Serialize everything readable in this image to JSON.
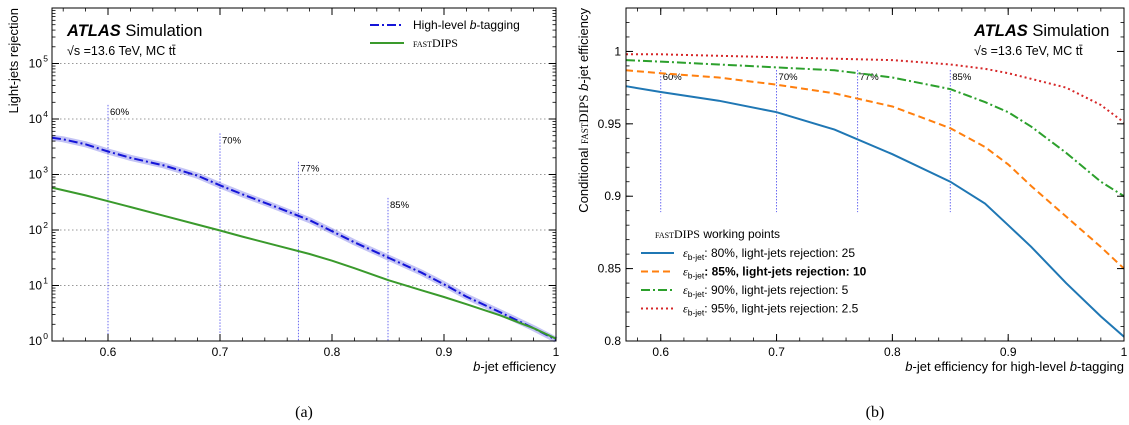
{
  "chart_data": [
    {
      "type": "line",
      "panel_label": "(a)",
      "xlabel": "b-jet efficiency",
      "ylabel": "Light-jets rejection",
      "xlim": [
        0.55,
        1.0
      ],
      "ylim": [
        1,
        1000000
      ],
      "yscale": "log",
      "xticks": [
        0.6,
        0.7,
        0.8,
        0.9,
        1.0
      ],
      "xtick_labels": [
        "0.6",
        "0.7",
        "0.8",
        "0.9",
        "1"
      ],
      "yticks": [
        1,
        10,
        100,
        1000,
        10000,
        100000
      ],
      "ytick_labels": [
        "10",
        "10",
        "10",
        "10",
        "10",
        "10"
      ],
      "ytick_exponents": [
        "0",
        "1",
        "2",
        "3",
        "4",
        "5"
      ],
      "grid": "horizontal dotted",
      "legend_position": "top-right",
      "experiment": "ATLAS",
      "status": "Simulation",
      "energy_text": "√s =13.6 TeV, MC tt̄",
      "working_points": [
        {
          "x": 0.6,
          "label": "60%",
          "top": 18000
        },
        {
          "x": 0.7,
          "label": "70%",
          "top": 5500
        },
        {
          "x": 0.77,
          "label": "77%",
          "top": 1700
        },
        {
          "x": 0.85,
          "label": "85%",
          "top": 380
        }
      ],
      "series": [
        {
          "name": "High-level b-tagging",
          "color": "#1515d8",
          "style": "dashdot",
          "x": [
            0.55,
            0.56,
            0.58,
            0.6,
            0.62,
            0.65,
            0.68,
            0.7,
            0.72,
            0.75,
            0.78,
            0.8,
            0.82,
            0.85,
            0.88,
            0.9,
            0.92,
            0.95,
            0.98,
            1.0
          ],
          "y": [
            4600,
            4300,
            3500,
            2600,
            2000,
            1450,
            950,
            640,
            440,
            260,
            150,
            95,
            60,
            32,
            17,
            10.5,
            6.3,
            3.3,
            1.7,
            1.05
          ]
        },
        {
          "name": "fastDIPS",
          "color": "#3a9a2c",
          "style": "solid",
          "x": [
            0.55,
            0.58,
            0.6,
            0.62,
            0.65,
            0.68,
            0.7,
            0.72,
            0.75,
            0.78,
            0.8,
            0.82,
            0.85,
            0.88,
            0.9,
            0.92,
            0.95,
            0.98,
            1.0
          ],
          "y": [
            580,
            420,
            330,
            260,
            180,
            125,
            98,
            76,
            53,
            37,
            28,
            20.5,
            12.5,
            8.2,
            6.2,
            4.6,
            2.9,
            1.7,
            1.1
          ]
        }
      ]
    },
    {
      "type": "line",
      "panel_label": "(b)",
      "xlabel": "b-jet efficiency for high-level b-tagging",
      "ylabel": "Conditional fastDIPS b-jet efficiency",
      "xlim": [
        0.57,
        1.0
      ],
      "ylim": [
        0.8,
        1.03
      ],
      "xticks": [
        0.6,
        0.7,
        0.8,
        0.9,
        1.0
      ],
      "xtick_labels": [
        "0.6",
        "0.7",
        "0.8",
        "0.9",
        "1"
      ],
      "yticks": [
        0.8,
        0.85,
        0.9,
        0.95,
        1.0
      ],
      "ytick_labels": [
        "0.8",
        "0.85",
        "0.9",
        "0.95",
        "1"
      ],
      "legend_position": "bottom-left",
      "legend_title": "fastDIPS working points",
      "experiment": "ATLAS",
      "status": "Simulation",
      "energy_text": "√s =13.6 TeV, MC tt̄",
      "working_points": [
        {
          "x": 0.6,
          "label": "60%"
        },
        {
          "x": 0.7,
          "label": "70%"
        },
        {
          "x": 0.77,
          "label": "77%"
        },
        {
          "x": 0.85,
          "label": "85%"
        }
      ],
      "series": [
        {
          "name": "εb-jet: 80%, light-jets rejection: 25",
          "eps_sub": "b-jet",
          "rest": ": 80%, light-jets rejection: 25",
          "color": "#1f77b4",
          "style": "solid",
          "bold": false,
          "x": [
            0.57,
            0.6,
            0.65,
            0.7,
            0.75,
            0.8,
            0.85,
            0.88,
            0.9,
            0.92,
            0.95,
            0.98,
            1.0
          ],
          "y": [
            0.976,
            0.972,
            0.966,
            0.958,
            0.946,
            0.929,
            0.91,
            0.895,
            0.88,
            0.865,
            0.84,
            0.817,
            0.803
          ]
        },
        {
          "name": "εb-jet: 85%, light-jets rejection: 10",
          "eps_sub": "b-jet",
          "rest": ": 85%, light-jets rejection: 10",
          "color": "#ff7f0e",
          "style": "dashed",
          "bold": true,
          "x": [
            0.57,
            0.6,
            0.65,
            0.7,
            0.75,
            0.8,
            0.85,
            0.88,
            0.9,
            0.92,
            0.95,
            0.98,
            1.0
          ],
          "y": [
            0.987,
            0.985,
            0.982,
            0.977,
            0.971,
            0.962,
            0.947,
            0.934,
            0.922,
            0.907,
            0.886,
            0.865,
            0.85
          ]
        },
        {
          "name": "εb-jet: 90%, light-jets rejection: 5",
          "eps_sub": "b-jet",
          "rest": ": 90%, light-jets rejection: 5",
          "color": "#2ca02c",
          "style": "dashdot",
          "bold": false,
          "x": [
            0.57,
            0.6,
            0.65,
            0.7,
            0.75,
            0.8,
            0.85,
            0.88,
            0.9,
            0.92,
            0.95,
            0.98,
            1.0
          ],
          "y": [
            0.994,
            0.993,
            0.991,
            0.989,
            0.987,
            0.982,
            0.974,
            0.965,
            0.958,
            0.948,
            0.93,
            0.91,
            0.9
          ]
        },
        {
          "name": "εb-jet: 95%, light-jets rejection: 2.5",
          "eps_sub": "b-jet",
          "rest": ": 95%, light-jets rejection: 2.5",
          "color": "#d62728",
          "style": "dotted",
          "bold": false,
          "x": [
            0.57,
            0.6,
            0.65,
            0.7,
            0.75,
            0.8,
            0.85,
            0.88,
            0.9,
            0.92,
            0.95,
            0.98,
            1.0
          ],
          "y": [
            0.998,
            0.998,
            0.997,
            0.996,
            0.995,
            0.994,
            0.991,
            0.988,
            0.985,
            0.981,
            0.975,
            0.963,
            0.951
          ]
        }
      ]
    }
  ]
}
